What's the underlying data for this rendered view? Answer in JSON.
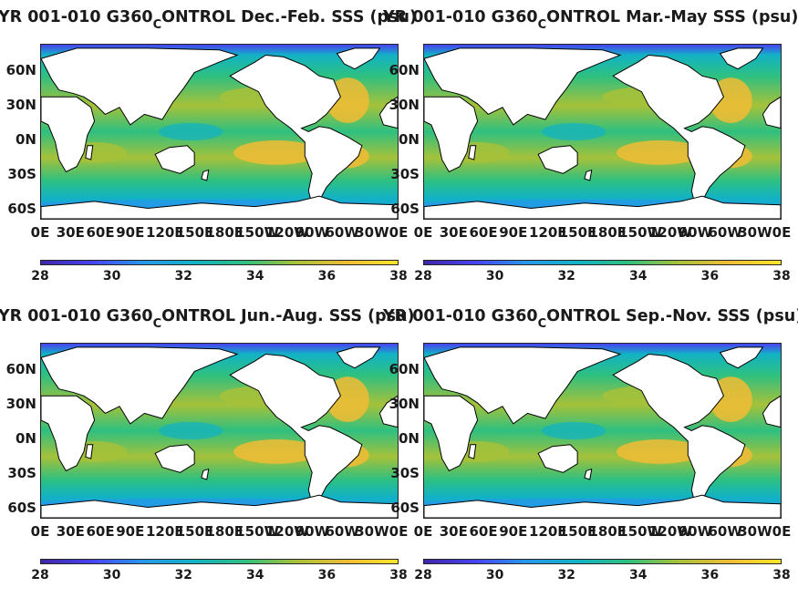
{
  "colors": {
    "colormap": [
      "#3e26a8",
      "#4743f0",
      "#2797eb",
      "#12b2c5",
      "#2ec080",
      "#a6c139",
      "#f1bc35",
      "#f9e629"
    ],
    "land": "#ffffff",
    "coast": "#000000",
    "frame": "#262626",
    "text": "#1a1a1a"
  },
  "panels": [
    {
      "title_main": "YR 001-010 G360",
      "title_sub": "C",
      "title_rest": "ONTROL Dec.-Feb. SSS (psu)",
      "season": "Dec.-Feb."
    },
    {
      "title_main": "YR 001-010 G360",
      "title_sub": "C",
      "title_rest": "ONTROL Mar.-May SSS (psu)",
      "season": "Mar.-May"
    },
    {
      "title_main": "YR 001-010 G360",
      "title_sub": "C",
      "title_rest": "ONTROL Jun.-Aug. SSS (psu)",
      "season": "Jun.-Aug."
    },
    {
      "title_main": "YR 001-010 G360",
      "title_sub": "C",
      "title_rest": "ONTROL Sep.-Nov. SSS (psu)",
      "season": "Sep.-Nov."
    }
  ],
  "lat_ticks": [
    "60N",
    "30N",
    "0N",
    "30S",
    "60S"
  ],
  "lon_ticks": [
    "0E",
    "30E",
    "60E",
    "90E",
    "120E",
    "150E",
    "180E",
    "150W",
    "120W",
    "90W",
    "60W",
    "30W",
    "0E"
  ],
  "colorbar": {
    "min": 28,
    "max": 38,
    "ticks": [
      "28",
      "30",
      "32",
      "34",
      "36",
      "38"
    ]
  }
}
